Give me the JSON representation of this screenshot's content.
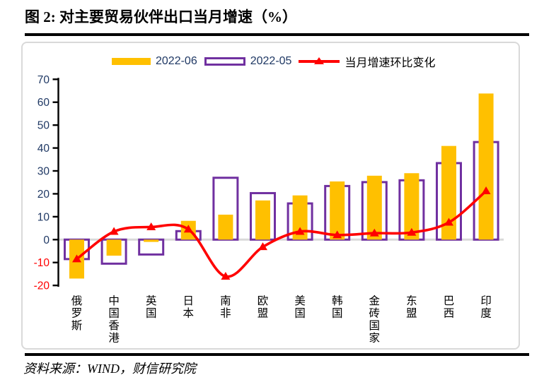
{
  "figure": {
    "title": "图 2:  对主要贸易伙伴出口当月增速（%）",
    "source": "资料来源：WIND，财信研究院"
  },
  "legend": {
    "june_label": "2022-06",
    "may_label": "2022-05",
    "change_label": "当月增速环比变化"
  },
  "colors": {
    "june_bar": "#FFC000",
    "may_bar_border": "#7030A0",
    "change_line": "#FF0000",
    "zero_gridline": "#D9D9D9",
    "axis": "#000000",
    "tick_label_positive": "#1F3864",
    "tick_label_negative": "#FF0000",
    "category_label": "#000000"
  },
  "chart_data": {
    "type": "bar",
    "subtype": "grouped-overlap-bars-with-line",
    "title": "图 2:  对主要贸易伙伴出口当月增速（%）",
    "categories": [
      "俄罗斯",
      "中国香港",
      "英国",
      "日本",
      "南非",
      "欧盟",
      "美国",
      "韩国",
      "金砖国家",
      "东盟",
      "巴西",
      "印度"
    ],
    "series": [
      {
        "name": "2022-06",
        "type": "bar",
        "style": "filled",
        "color": "#FFC000",
        "values": [
          -17.0,
          -7.0,
          -1.0,
          8.2,
          10.9,
          17.1,
          19.3,
          25.4,
          27.9,
          29.0,
          40.9,
          63.8
        ]
      },
      {
        "name": "2022-05",
        "type": "bar",
        "style": "outline",
        "color": "#7030A0",
        "values": [
          -8.5,
          -10.5,
          -6.5,
          3.7,
          27.0,
          20.3,
          15.8,
          23.4,
          25.1,
          25.9,
          33.4,
          42.6
        ]
      },
      {
        "name": "当月增速环比变化",
        "type": "line",
        "marker": "triangle-up",
        "color": "#FF0000",
        "values": [
          -8.5,
          3.5,
          5.5,
          4.5,
          -16.1,
          -3.2,
          3.5,
          2.0,
          2.8,
          3.1,
          7.5,
          21.2
        ]
      }
    ],
    "ylim": [
      -20,
      70
    ],
    "ytick_step": 10,
    "yticks": [
      -20,
      -10,
      0,
      10,
      20,
      30,
      40,
      50,
      60,
      70
    ],
    "xlabel": "",
    "ylabel": "",
    "grid": "zero-line-only",
    "legend_position": "top-center"
  }
}
